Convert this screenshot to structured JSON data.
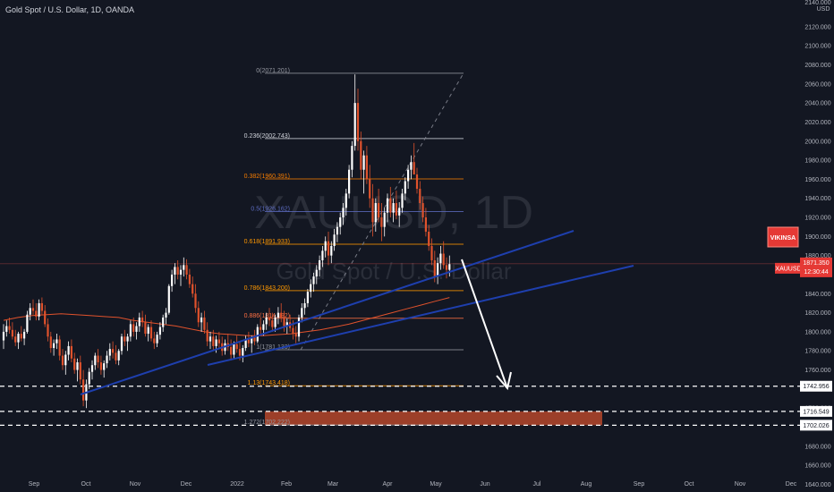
{
  "header": {
    "title": "Gold Spot / U.S. Dollar, 1D, OANDA"
  },
  "watermark": {
    "symbol": "XAUUSD, 1D",
    "name": "Gold Spot / U.S. Dollar"
  },
  "chart_data": {
    "type": "candlestick",
    "symbol": "XAUUSD",
    "interval": "1D",
    "currency": "USD",
    "y_axis": {
      "ticks": [
        "2140.000",
        "2120.000",
        "2100.000",
        "2080.000",
        "2060.000",
        "2040.000",
        "2020.000",
        "2000.000",
        "1980.000",
        "1960.000",
        "1940.000",
        "1920.000",
        "1900.000",
        "1880.000",
        "1860.000",
        "1840.000",
        "1820.000",
        "1800.000",
        "1780.000",
        "1760.000",
        "1740.000",
        "1720.000",
        "1700.000",
        "1680.000",
        "1660.000",
        "1640.000"
      ],
      "range": [
        1632,
        2148
      ]
    },
    "x_axis": {
      "labels": [
        "Sep",
        "Oct",
        "Nov",
        "Dec",
        "2022",
        "Feb",
        "Mar",
        "Apr",
        "May",
        "Jun",
        "Jul",
        "Aug",
        "Sep",
        "Oct",
        "Nov",
        "Dec"
      ]
    },
    "last_price": "1871.350",
    "countdown": "12:30:44",
    "price_tags": [
      {
        "label": "VIKINSA",
        "color": "#e53935"
      },
      {
        "label": "XAUUSD",
        "color": "#e53935"
      }
    ],
    "horizontal_levels": [
      "1742.956",
      "1716.549",
      "1702.026"
    ],
    "fibonacci": [
      {
        "label": "0(2071.201)",
        "color": "#9598a1"
      },
      {
        "label": "0.236(2002.743)",
        "color": "#d1d4dc"
      },
      {
        "label": "0.382(1960.391)",
        "color": "#f57c00"
      },
      {
        "label": "0.5(1926.162)",
        "color": "#5c6bc0"
      },
      {
        "label": "0.618(1891.933)",
        "color": "#ff9800"
      },
      {
        "label": "0.786(1843.200)",
        "color": "#ff9800"
      },
      {
        "label": "0.886(1814.192)",
        "color": "#ff7043"
      },
      {
        "label": "1(1781.133)",
        "color": "#9598a1"
      },
      {
        "label": "1.13(1743.418)",
        "color": "#ff9800"
      },
      {
        "label": "1.272(1702.222)",
        "color": "#9598a1"
      }
    ],
    "target_zone": {
      "low": 1702.026,
      "high": 1716.549,
      "color": "#b5472a"
    },
    "candles": [
      [
        1791,
        1808,
        1782,
        1800
      ],
      [
        1800,
        1812,
        1795,
        1806
      ],
      [
        1806,
        1815,
        1798,
        1802
      ],
      [
        1802,
        1810,
        1792,
        1795
      ],
      [
        1795,
        1802,
        1785,
        1789
      ],
      [
        1789,
        1800,
        1782,
        1798
      ],
      [
        1798,
        1806,
        1790,
        1793
      ],
      [
        1793,
        1803,
        1786,
        1800
      ],
      [
        1800,
        1822,
        1798,
        1818
      ],
      [
        1818,
        1830,
        1812,
        1825
      ],
      [
        1825,
        1834,
        1818,
        1822
      ],
      [
        1822,
        1830,
        1812,
        1816
      ],
      [
        1816,
        1834,
        1812,
        1830
      ],
      [
        1830,
        1836,
        1818,
        1822
      ],
      [
        1822,
        1828,
        1805,
        1808
      ],
      [
        1808,
        1814,
        1790,
        1795
      ],
      [
        1795,
        1800,
        1778,
        1783
      ],
      [
        1783,
        1792,
        1775,
        1788
      ],
      [
        1788,
        1798,
        1782,
        1792
      ],
      [
        1792,
        1796,
        1770,
        1775
      ],
      [
        1775,
        1782,
        1760,
        1765
      ],
      [
        1765,
        1780,
        1755,
        1776
      ],
      [
        1776,
        1790,
        1770,
        1785
      ],
      [
        1785,
        1792,
        1768,
        1772
      ],
      [
        1772,
        1778,
        1756,
        1760
      ],
      [
        1760,
        1772,
        1748,
        1768
      ],
      [
        1768,
        1775,
        1745,
        1750
      ],
      [
        1750,
        1760,
        1722,
        1728
      ],
      [
        1728,
        1750,
        1720,
        1745
      ],
      [
        1745,
        1762,
        1740,
        1758
      ],
      [
        1758,
        1770,
        1750,
        1765
      ],
      [
        1765,
        1778,
        1760,
        1775
      ],
      [
        1775,
        1782,
        1762,
        1768
      ],
      [
        1768,
        1775,
        1755,
        1760
      ],
      [
        1760,
        1770,
        1752,
        1767
      ],
      [
        1767,
        1780,
        1762,
        1775
      ],
      [
        1775,
        1788,
        1770,
        1782
      ],
      [
        1782,
        1790,
        1772,
        1778
      ],
      [
        1778,
        1786,
        1766,
        1770
      ],
      [
        1770,
        1782,
        1765,
        1780
      ],
      [
        1780,
        1798,
        1776,
        1795
      ],
      [
        1795,
        1802,
        1785,
        1790
      ],
      [
        1790,
        1798,
        1780,
        1795
      ],
      [
        1795,
        1812,
        1790,
        1808
      ],
      [
        1808,
        1815,
        1795,
        1800
      ],
      [
        1800,
        1810,
        1792,
        1806
      ],
      [
        1806,
        1820,
        1800,
        1815
      ],
      [
        1815,
        1822,
        1805,
        1810
      ],
      [
        1810,
        1818,
        1795,
        1798
      ],
      [
        1798,
        1808,
        1790,
        1805
      ],
      [
        1805,
        1812,
        1790,
        1793
      ],
      [
        1793,
        1800,
        1782,
        1788
      ],
      [
        1788,
        1800,
        1784,
        1797
      ],
      [
        1797,
        1810,
        1792,
        1805
      ],
      [
        1805,
        1818,
        1800,
        1815
      ],
      [
        1815,
        1825,
        1808,
        1820
      ],
      [
        1820,
        1850,
        1818,
        1848
      ],
      [
        1848,
        1865,
        1842,
        1860
      ],
      [
        1860,
        1872,
        1850,
        1868
      ],
      [
        1868,
        1875,
        1855,
        1860
      ],
      [
        1860,
        1870,
        1848,
        1865
      ],
      [
        1865,
        1878,
        1858,
        1870
      ],
      [
        1870,
        1876,
        1855,
        1860
      ],
      [
        1860,
        1866,
        1846,
        1850
      ],
      [
        1850,
        1858,
        1836,
        1840
      ],
      [
        1840,
        1850,
        1820,
        1825
      ],
      [
        1825,
        1832,
        1805,
        1810
      ],
      [
        1810,
        1820,
        1800,
        1815
      ],
      [
        1815,
        1822,
        1798,
        1802
      ],
      [
        1802,
        1810,
        1785,
        1790
      ],
      [
        1790,
        1800,
        1782,
        1795
      ],
      [
        1795,
        1802,
        1780,
        1785
      ],
      [
        1785,
        1796,
        1778,
        1792
      ],
      [
        1792,
        1800,
        1782,
        1788
      ],
      [
        1788,
        1795,
        1775,
        1780
      ],
      [
        1780,
        1792,
        1776,
        1788
      ],
      [
        1788,
        1798,
        1780,
        1784
      ],
      [
        1784,
        1792,
        1770,
        1776
      ],
      [
        1776,
        1790,
        1772,
        1787
      ],
      [
        1787,
        1796,
        1778,
        1782
      ],
      [
        1782,
        1790,
        1770,
        1775
      ],
      [
        1775,
        1786,
        1768,
        1783
      ],
      [
        1783,
        1796,
        1780,
        1792
      ],
      [
        1792,
        1800,
        1784,
        1788
      ],
      [
        1788,
        1796,
        1778,
        1794
      ],
      [
        1794,
        1802,
        1786,
        1790
      ],
      [
        1790,
        1808,
        1788,
        1805
      ],
      [
        1805,
        1814,
        1798,
        1802
      ],
      [
        1802,
        1812,
        1796,
        1808
      ],
      [
        1808,
        1820,
        1802,
        1815
      ],
      [
        1815,
        1825,
        1806,
        1812
      ],
      [
        1812,
        1820,
        1800,
        1805
      ],
      [
        1805,
        1818,
        1800,
        1815
      ],
      [
        1815,
        1826,
        1808,
        1820
      ],
      [
        1820,
        1830,
        1810,
        1815
      ],
      [
        1815,
        1822,
        1800,
        1806
      ],
      [
        1806,
        1814,
        1798,
        1810
      ],
      [
        1810,
        1818,
        1800,
        1804
      ],
      [
        1804,
        1812,
        1792,
        1798
      ],
      [
        1798,
        1806,
        1788,
        1795
      ],
      [
        1795,
        1818,
        1790,
        1815
      ],
      [
        1815,
        1830,
        1810,
        1825
      ],
      [
        1825,
        1835,
        1818,
        1830
      ],
      [
        1830,
        1845,
        1826,
        1842
      ],
      [
        1842,
        1855,
        1836,
        1850
      ],
      [
        1850,
        1862,
        1842,
        1858
      ],
      [
        1858,
        1870,
        1850,
        1865
      ],
      [
        1865,
        1880,
        1858,
        1875
      ],
      [
        1875,
        1890,
        1868,
        1885
      ],
      [
        1885,
        1900,
        1878,
        1895
      ],
      [
        1895,
        1905,
        1870,
        1880
      ],
      [
        1880,
        1895,
        1872,
        1890
      ],
      [
        1890,
        1908,
        1885,
        1902
      ],
      [
        1902,
        1915,
        1894,
        1910
      ],
      [
        1910,
        1925,
        1902,
        1920
      ],
      [
        1920,
        1935,
        1912,
        1930
      ],
      [
        1930,
        1950,
        1922,
        1945
      ],
      [
        1945,
        1975,
        1940,
        1970
      ],
      [
        1970,
        2000,
        1962,
        1995
      ],
      [
        1995,
        2070,
        1990,
        2040
      ],
      [
        2040,
        2055,
        1990,
        2000
      ],
      [
        2000,
        2010,
        1960,
        1970
      ],
      [
        1970,
        1990,
        1945,
        1985
      ],
      [
        1985,
        1995,
        1955,
        1960
      ],
      [
        1960,
        1975,
        1930,
        1940
      ],
      [
        1940,
        1955,
        1900,
        1915
      ],
      [
        1915,
        1940,
        1905,
        1935
      ],
      [
        1935,
        1950,
        1915,
        1920
      ],
      [
        1920,
        1935,
        1895,
        1910
      ],
      [
        1910,
        1930,
        1900,
        1925
      ],
      [
        1925,
        1945,
        1915,
        1940
      ],
      [
        1940,
        1952,
        1920,
        1925
      ],
      [
        1925,
        1940,
        1915,
        1935
      ],
      [
        1935,
        1948,
        1918,
        1922
      ],
      [
        1922,
        1936,
        1910,
        1930
      ],
      [
        1930,
        1950,
        1925,
        1945
      ],
      [
        1945,
        1962,
        1938,
        1958
      ],
      [
        1958,
        1975,
        1950,
        1970
      ],
      [
        1970,
        1985,
        1960,
        1978
      ],
      [
        1978,
        1998,
        1965,
        1965
      ],
      [
        1965,
        1972,
        1945,
        1950
      ],
      [
        1950,
        1958,
        1928,
        1935
      ],
      [
        1935,
        1942,
        1915,
        1920
      ],
      [
        1920,
        1930,
        1900,
        1905
      ],
      [
        1905,
        1912,
        1885,
        1890
      ],
      [
        1890,
        1898,
        1870,
        1875
      ],
      [
        1875,
        1885,
        1852,
        1858
      ],
      [
        1858,
        1878,
        1850,
        1872
      ],
      [
        1872,
        1890,
        1865,
        1882
      ],
      [
        1882,
        1895,
        1866,
        1870
      ],
      [
        1870,
        1878,
        1856,
        1865
      ],
      [
        1865,
        1880,
        1858,
        1871
      ]
    ],
    "moving_average": [
      1812,
      1815,
      1817,
      1818,
      1819,
      1818,
      1817,
      1816,
      1815,
      1812,
      1810,
      1808,
      1806,
      1803,
      1800,
      1798,
      1797,
      1796,
      1796,
      1797,
      1798,
      1800,
      1802,
      1805,
      1808,
      1812,
      1816,
      1820,
      1824,
      1828,
      1832,
      1836
    ],
    "trendlines": [
      {
        "name": "",
        "color": "#1e3fae"
      },
      {
        "name": "",
        "color": "#1e3fae"
      }
    ]
  }
}
